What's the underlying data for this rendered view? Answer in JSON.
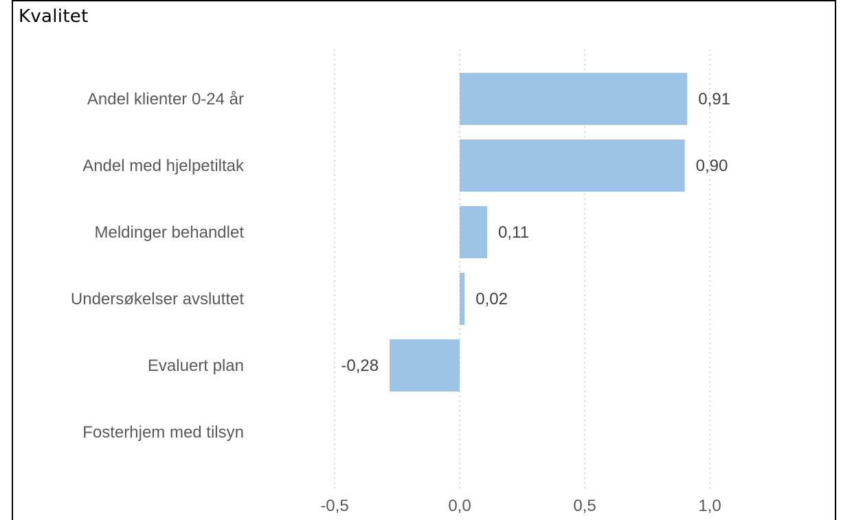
{
  "title": "Kvalitet",
  "chart_data": {
    "type": "bar",
    "orientation": "horizontal",
    "title": "Kvalitet",
    "xlabel": "",
    "ylabel": "",
    "categories": [
      "Andel klienter 0-24 år",
      "Andel med hjelpetiltak",
      "Meldinger behandlet",
      "Undersøkelser avsluttet",
      "Evaluert plan",
      "Fosterhjem med tilsyn"
    ],
    "values": [
      0.91,
      0.9,
      0.11,
      0.02,
      -0.28,
      null
    ],
    "value_labels": [
      "0,91",
      "0,90",
      "0,11",
      "0,02",
      "-0,28",
      ""
    ],
    "xlim": [
      -0.5,
      1.0
    ],
    "xticks": [
      -0.5,
      0.0,
      0.5,
      1.0
    ],
    "xtick_labels": [
      "-0,5",
      "0,0",
      "0,5",
      "1,0"
    ],
    "grid": "vertical-dotted",
    "bar_color": "#9dc3e6",
    "grid_color": "#c8c8c8"
  }
}
